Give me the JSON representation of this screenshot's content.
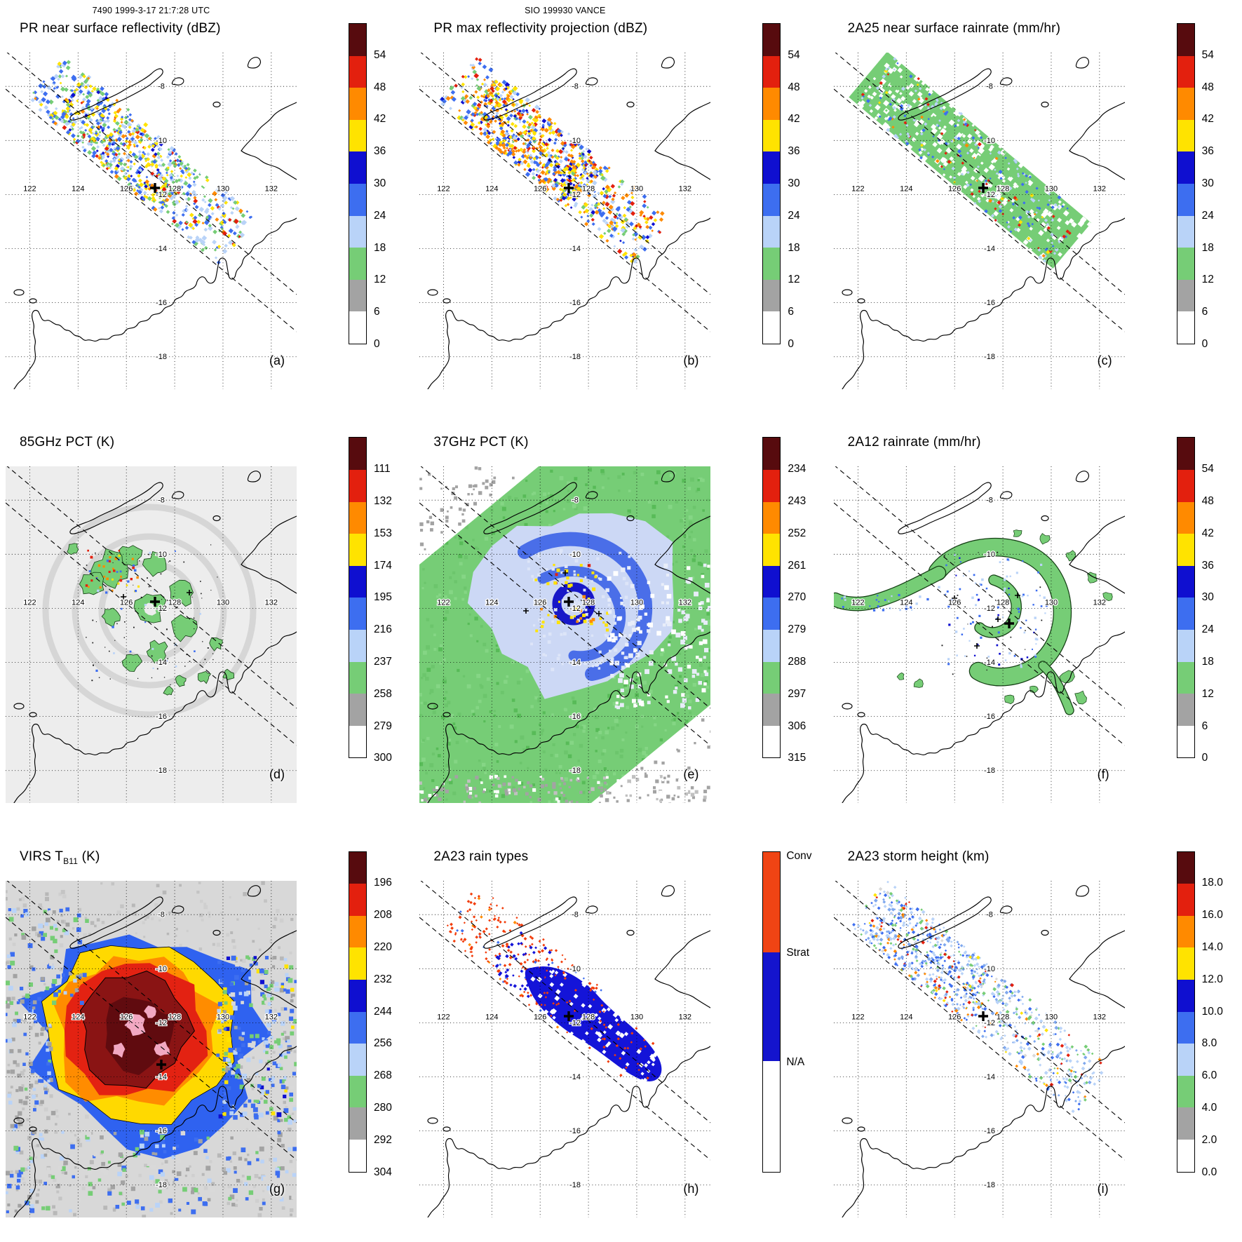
{
  "figure": {
    "header_left": "7490 1999-3-17 21:7:28 UTC",
    "header_center": "SIO 199930 VANCE"
  },
  "chart_data": {
    "type": "heatmap",
    "layout": "3x3 satellite map grid",
    "storm_id": "SIO 199930 VANCE",
    "overpass_label": "7490 1999-3-17 21:7:28 UTC",
    "lon_ticks": [
      122,
      124,
      126,
      128,
      130,
      132
    ],
    "lat_ticks": [
      -8,
      -10,
      -12,
      -14,
      -16,
      -18
    ],
    "colorbar_colors_top_to_bottom": [
      "#570b0e",
      "#e3200e",
      "#ff8a00",
      "#ffe300",
      "#0f0fd0",
      "#3d6ef0",
      "#b9d3f8",
      "#76cd76",
      "#a3a3a3",
      "#ffffff"
    ],
    "panels": [
      {
        "id": "a",
        "label": "(a)",
        "title": "PR near surface reflectivity (dBZ)",
        "title_sub": "",
        "title_post": "",
        "colorbar_ticks": [
          "54",
          "48",
          "42",
          "36",
          "30",
          "24",
          "18",
          "12",
          "6",
          "0"
        ]
      },
      {
        "id": "b",
        "label": "(b)",
        "title": "PR max reflectivity projection (dBZ)",
        "title_sub": "",
        "title_post": "",
        "colorbar_ticks": [
          "54",
          "48",
          "42",
          "36",
          "30",
          "24",
          "18",
          "12",
          "6",
          "0"
        ]
      },
      {
        "id": "c",
        "label": "(c)",
        "title": "2A25 near surface rainrate (mm/hr)",
        "title_sub": "",
        "title_post": "",
        "colorbar_ticks": [
          "54",
          "48",
          "42",
          "36",
          "30",
          "24",
          "18",
          "12",
          "6",
          "0"
        ]
      },
      {
        "id": "d",
        "label": "(d)",
        "title": "85GHz PCT (K)",
        "title_sub": "",
        "title_post": "",
        "colorbar_ticks": [
          "111",
          "132",
          "153",
          "174",
          "195",
          "216",
          "237",
          "258",
          "279",
          "300"
        ]
      },
      {
        "id": "e",
        "label": "(e)",
        "title": "37GHz PCT (K)",
        "title_sub": "",
        "title_post": "",
        "colorbar_ticks": [
          "234",
          "243",
          "252",
          "261",
          "270",
          "279",
          "288",
          "297",
          "306",
          "315"
        ]
      },
      {
        "id": "f",
        "label": "(f)",
        "title": "2A12 rainrate (mm/hr)",
        "title_sub": "",
        "title_post": "",
        "colorbar_ticks": [
          "54",
          "48",
          "42",
          "36",
          "30",
          "24",
          "18",
          "12",
          "6",
          "0"
        ]
      },
      {
        "id": "g",
        "label": "(g)",
        "title": "VIRS T",
        "title_sub": "B11",
        "title_post": " (K)",
        "colorbar_ticks": [
          "196",
          "208",
          "220",
          "232",
          "244",
          "256",
          "268",
          "280",
          "292",
          "304"
        ]
      },
      {
        "id": "h",
        "label": "(h)",
        "title": "2A23 rain types",
        "title_sub": "",
        "title_post": "",
        "colorbar_categories": [
          {
            "label": "Conv",
            "color": "#f04414",
            "frac": 0.315
          },
          {
            "label": "Strat",
            "color": "#1414cd",
            "frac": 0.34
          },
          {
            "label": "N/A",
            "color": "#ffffff",
            "frac": 0.345
          }
        ]
      },
      {
        "id": "i",
        "label": "(i)",
        "title": "2A23 storm height (km)",
        "title_sub": "",
        "title_post": "",
        "colorbar_ticks": [
          "18.0",
          "16.0",
          "14.0",
          "12.0",
          "10.0",
          "8.0",
          "6.0",
          "4.0",
          "2.0",
          "0.0"
        ]
      }
    ]
  }
}
